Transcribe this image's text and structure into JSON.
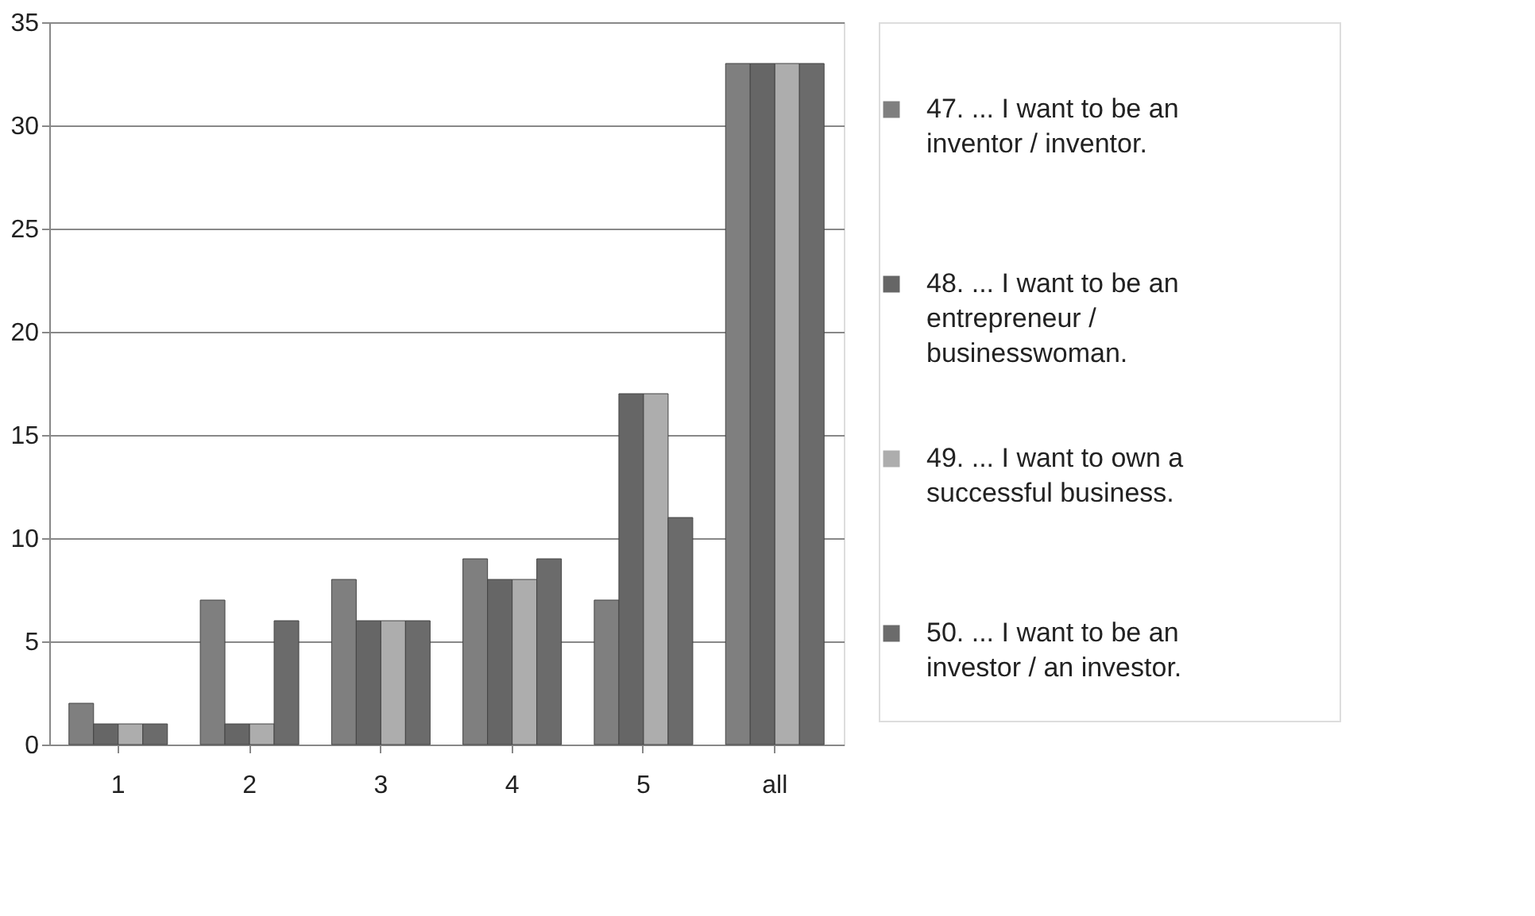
{
  "chart_data": {
    "type": "bar",
    "categories": [
      "1",
      "2",
      "3",
      "4",
      "5",
      "all"
    ],
    "series": [
      {
        "name": "47. ... I want to be an inventor / inventor.",
        "color": "#7f7f7f",
        "values": [
          2,
          7,
          8,
          9,
          7,
          33
        ]
      },
      {
        "name": "48. ... I want to be an entrepreneur / businesswoman.",
        "color": "#666666",
        "values": [
          1,
          1,
          6,
          8,
          17,
          33
        ]
      },
      {
        "name": "49. ... I want to own a successful business.",
        "color": "#adadad",
        "values": [
          1,
          1,
          6,
          8,
          17,
          33
        ]
      },
      {
        "name": "50. ... I want to be an investor / an investor.",
        "color": "#6b6b6b",
        "values": [
          1,
          6,
          6,
          9,
          11,
          33
        ]
      }
    ],
    "ylim": [
      0,
      35
    ],
    "yticks": [
      0,
      5,
      10,
      15,
      20,
      25,
      30,
      35
    ],
    "grid": "y",
    "legend": "right"
  }
}
